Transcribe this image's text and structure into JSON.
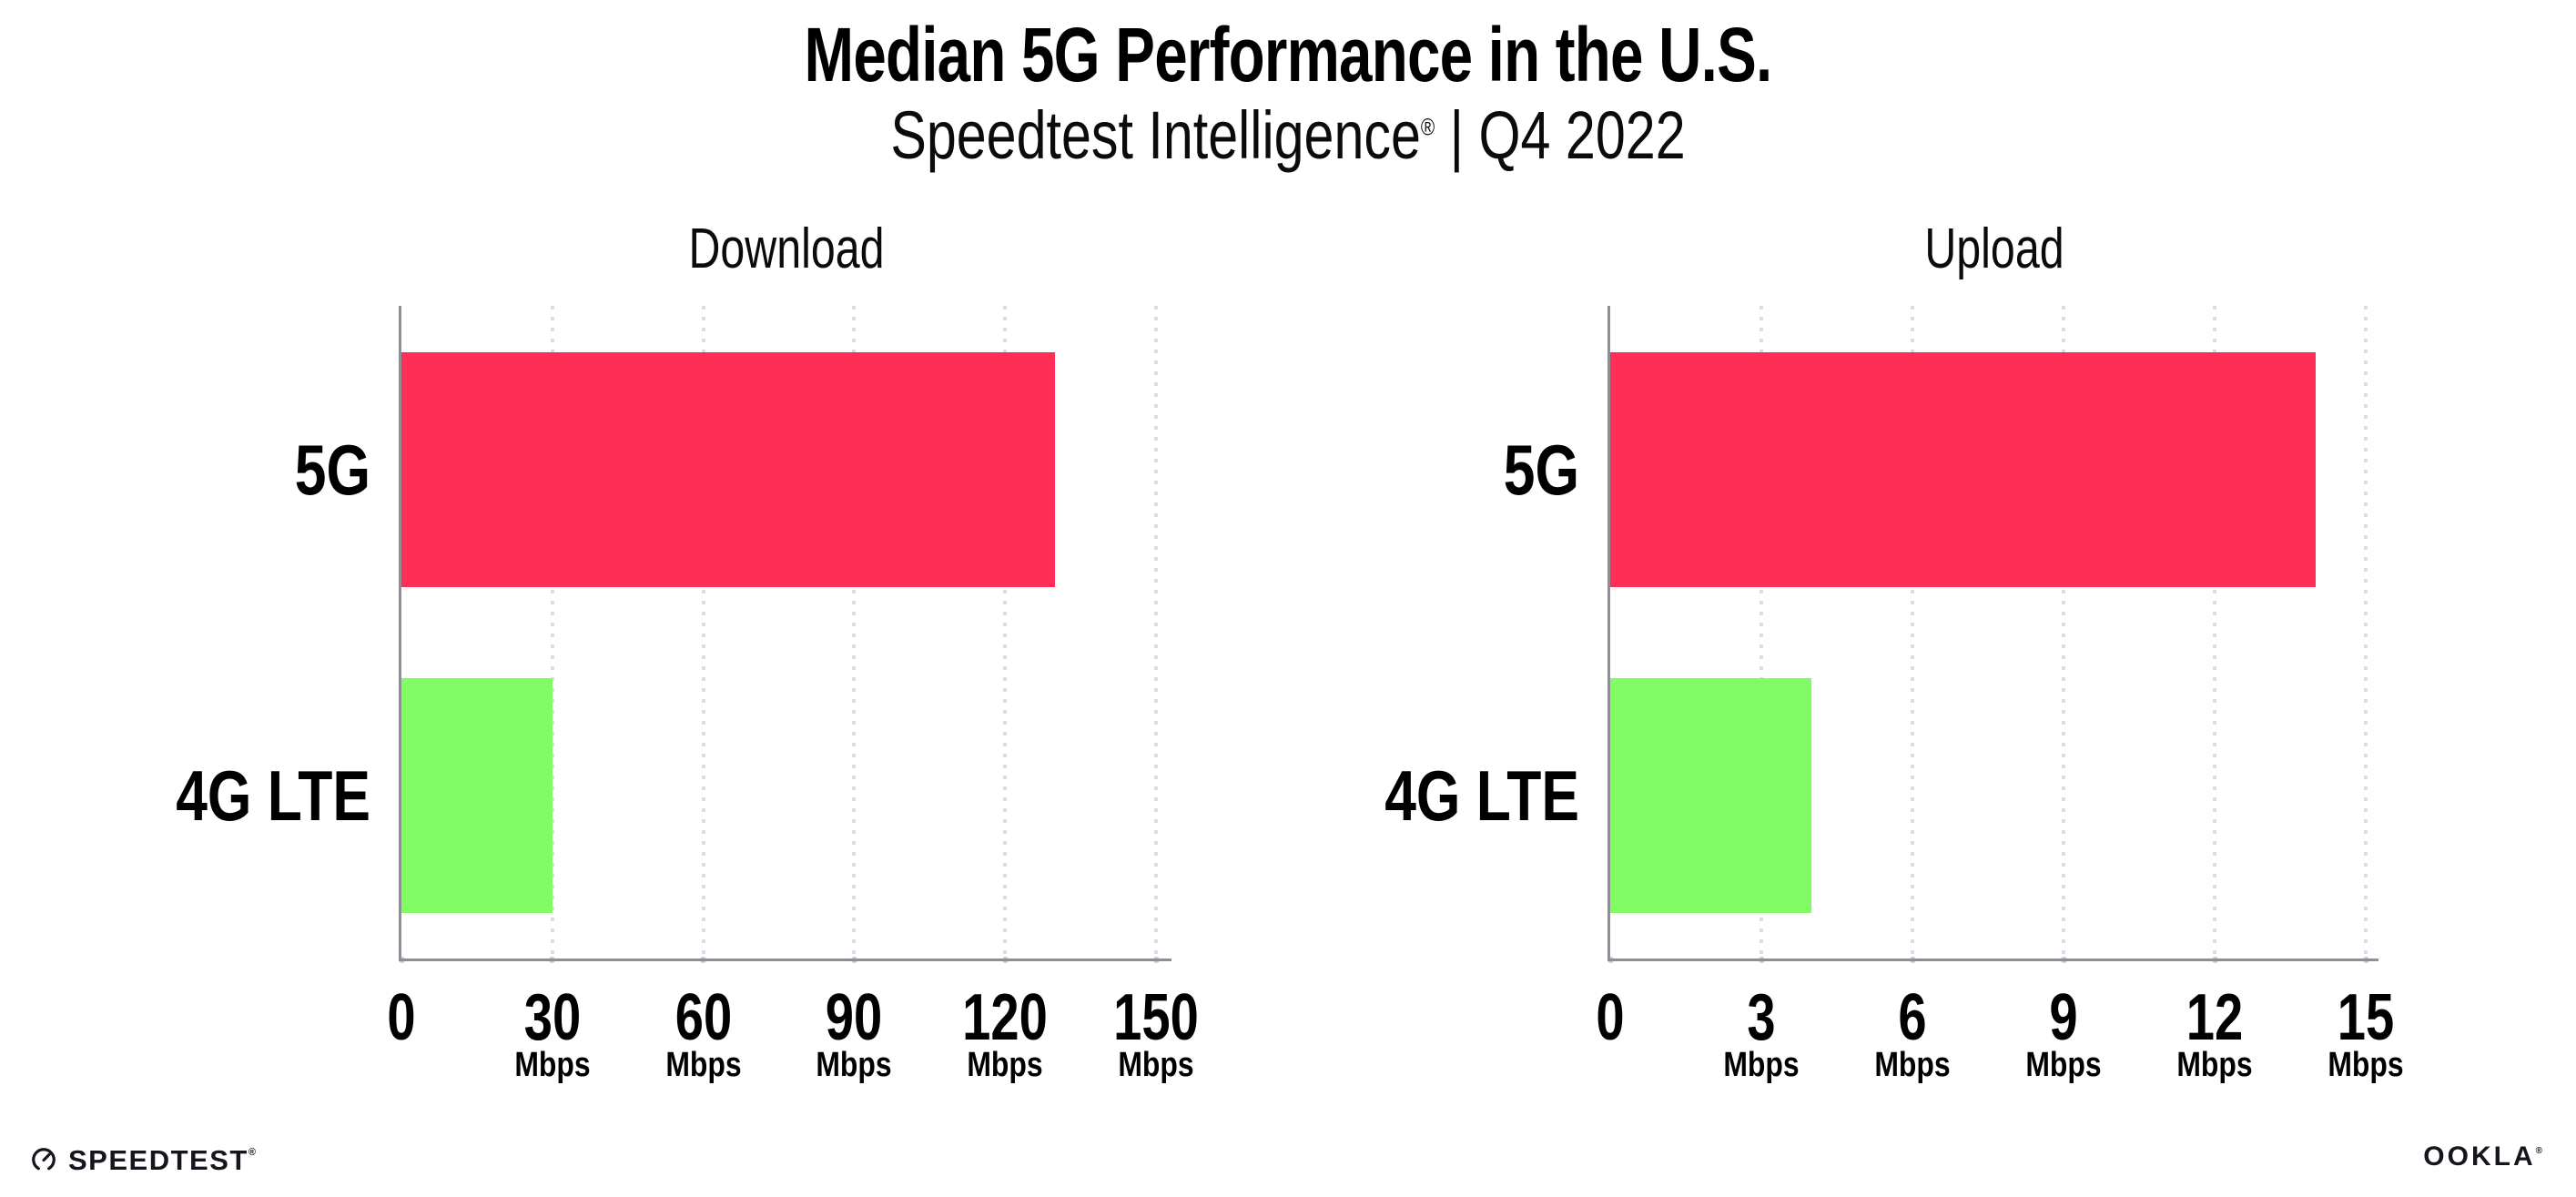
{
  "header": {
    "title": "Median 5G Performance in the U.S.",
    "subtitle_brand": "Speedtest Intelligence",
    "subtitle_reg": "®",
    "subtitle_sep": " | ",
    "subtitle_period": "Q4 2022"
  },
  "chart_data": [
    {
      "type": "bar",
      "orientation": "horizontal",
      "title": "Download",
      "categories": [
        "5G",
        "4G LTE"
      ],
      "values": [
        130,
        30
      ],
      "unit": "Mbps",
      "xlim": [
        0,
        150
      ],
      "xticks": [
        0,
        30,
        60,
        90,
        120,
        150
      ],
      "bar_colors": [
        "#FF2E56",
        "#82FB64"
      ],
      "grid": "vertical-dotted",
      "legend": "none"
    },
    {
      "type": "bar",
      "orientation": "horizontal",
      "title": "Upload",
      "categories": [
        "5G",
        "4G LTE"
      ],
      "values": [
        14,
        4
      ],
      "unit": "Mbps",
      "xlim": [
        0,
        15
      ],
      "xticks": [
        0,
        3,
        6,
        9,
        12,
        15
      ],
      "bar_colors": [
        "#FF2E56",
        "#82FB64"
      ],
      "grid": "vertical-dotted",
      "legend": "none"
    }
  ],
  "footer": {
    "speedtest_label": "SPEEDTEST",
    "speedtest_mark": "®",
    "ookla_label": "OOKLA",
    "ookla_mark": "®"
  },
  "colors": {
    "bar_5g": "#FF2E56",
    "bar_4g": "#82FB64",
    "axis_line": "#8E8E94",
    "grid_dot": "#DCDCE6",
    "tick_dot": "#C9C9D6",
    "text": "#000000",
    "logo": "#15161D",
    "background": "#FFFFFF"
  }
}
